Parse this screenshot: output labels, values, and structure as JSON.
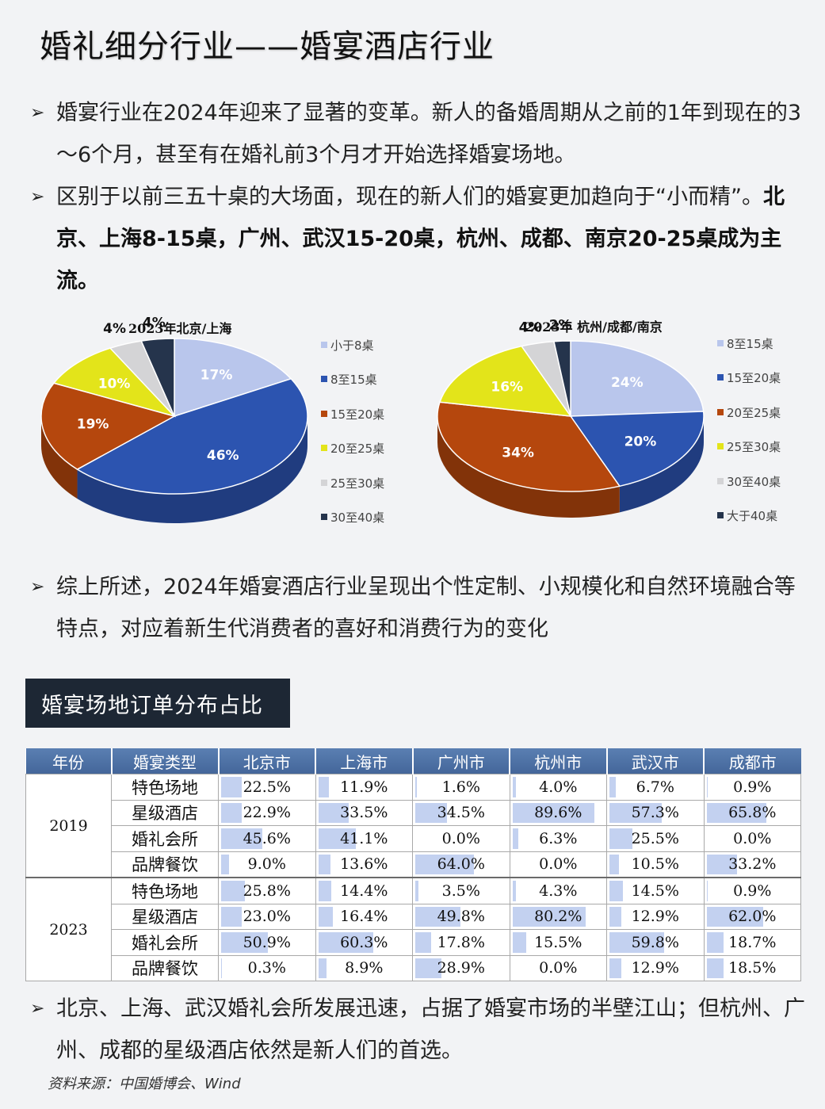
{
  "title": "婚礼细分行业——婚宴酒店行业",
  "bullets": {
    "b1": "婚宴行业在2024年迎来了显著的变革。新人的备婚周期从之前的1年到现在的3～6个月，甚至有在婚礼前3个月才开始选择婚宴场地。",
    "b2_pre": "区别于以前三五十桌的大场面，现在的新人们的婚宴更加趋向于“小而精”。",
    "b2_bold": "北京、上海8-15桌，广州、武汉15-20桌，杭州、成都、南京20-25桌成为主流。",
    "b3": "综上所述，2024年婚宴酒店行业呈现出个性定制、小规模化和自然环境融合等特点，对应着新生代消费者的喜好和消费行为的变化",
    "b4": "北京、上海、武汉婚礼会所发展迅速，占据了婚宴市场的半壁江山；但杭州、广州、成都的星级酒店依然是新人们的首选。",
    "mark": "➢"
  },
  "chart_data": [
    {
      "type": "pie",
      "title": "2023年北京/上海",
      "categories": [
        "小于8桌",
        "8至15桌",
        "15至20桌",
        "20至25桌",
        "25至30桌",
        "30至40桌"
      ],
      "values": [
        17,
        46,
        19,
        10,
        4,
        4
      ],
      "data_labels": [
        "17%",
        "46%",
        "19%",
        "10%",
        "4%",
        "4%"
      ],
      "colors": [
        "#b9c6ec",
        "#2c54b0",
        "#b5470d",
        "#e3e41a",
        "#d4d4d6",
        "#25344c"
      ],
      "legend_placement": "right"
    },
    {
      "type": "pie",
      "title": "2023年 杭州/成都/南京",
      "categories": [
        "8至15桌",
        "15至20桌",
        "20至25桌",
        "25至30桌",
        "30至40桌",
        "大于40桌"
      ],
      "values": [
        24,
        20,
        34,
        16,
        4,
        2
      ],
      "data_labels": [
        "24%",
        "20%",
        "34%",
        "16%",
        "4%",
        "2%"
      ],
      "colors": [
        "#b9c6ec",
        "#2c54b0",
        "#b5470d",
        "#e3e41a",
        "#d4d4d6",
        "#25344c"
      ],
      "legend_placement": "right"
    }
  ],
  "table_title": "婚宴场地订单分布占比",
  "table": {
    "headers": [
      "年份",
      "婚宴类型",
      "北京市",
      "上海市",
      "广州市",
      "杭州市",
      "武汉市",
      "成都市"
    ],
    "groups": [
      {
        "year": "2019",
        "rows": [
          {
            "type": "特色场地",
            "values": [
              "22.5%",
              "11.9%",
              "1.6%",
              "4.0%",
              "6.7%",
              "0.9%"
            ],
            "nums": [
              22.5,
              11.9,
              1.6,
              4.0,
              6.7,
              0.9
            ]
          },
          {
            "type": "星级酒店",
            "values": [
              "22.9%",
              "33.5%",
              "34.5%",
              "89.6%",
              "57.3%",
              "65.8%"
            ],
            "nums": [
              22.9,
              33.5,
              34.5,
              89.6,
              57.3,
              65.8
            ]
          },
          {
            "type": "婚礼会所",
            "values": [
              "45.6%",
              "41.1%",
              "0.0%",
              "6.3%",
              "25.5%",
              "0.0%"
            ],
            "nums": [
              45.6,
              41.1,
              0.0,
              6.3,
              25.5,
              0.0
            ]
          },
          {
            "type": "品牌餐饮",
            "values": [
              "9.0%",
              "13.6%",
              "64.0%",
              "0.0%",
              "10.5%",
              "33.2%"
            ],
            "nums": [
              9.0,
              13.6,
              64.0,
              0.0,
              10.5,
              33.2
            ]
          }
        ]
      },
      {
        "year": "2023",
        "rows": [
          {
            "type": "特色场地",
            "values": [
              "25.8%",
              "14.4%",
              "3.5%",
              "4.3%",
              "14.5%",
              "0.9%"
            ],
            "nums": [
              25.8,
              14.4,
              3.5,
              4.3,
              14.5,
              0.9
            ]
          },
          {
            "type": "星级酒店",
            "values": [
              "23.0%",
              "16.4%",
              "49.8%",
              "80.2%",
              "12.9%",
              "62.0%"
            ],
            "nums": [
              23.0,
              16.4,
              49.8,
              80.2,
              12.9,
              62.0
            ]
          },
          {
            "type": "婚礼会所",
            "values": [
              "50.9%",
              "60.3%",
              "17.8%",
              "15.5%",
              "59.8%",
              "18.7%"
            ],
            "nums": [
              50.9,
              60.3,
              17.8,
              15.5,
              59.8,
              18.7
            ]
          },
          {
            "type": "品牌餐饮",
            "values": [
              "0.3%",
              "8.9%",
              "28.9%",
              "0.0%",
              "12.9%",
              "18.5%"
            ],
            "nums": [
              0.3,
              8.9,
              28.9,
              0.0,
              12.9,
              18.5
            ]
          }
        ]
      }
    ]
  },
  "source": "资料来源：中国婚博会、Wind"
}
